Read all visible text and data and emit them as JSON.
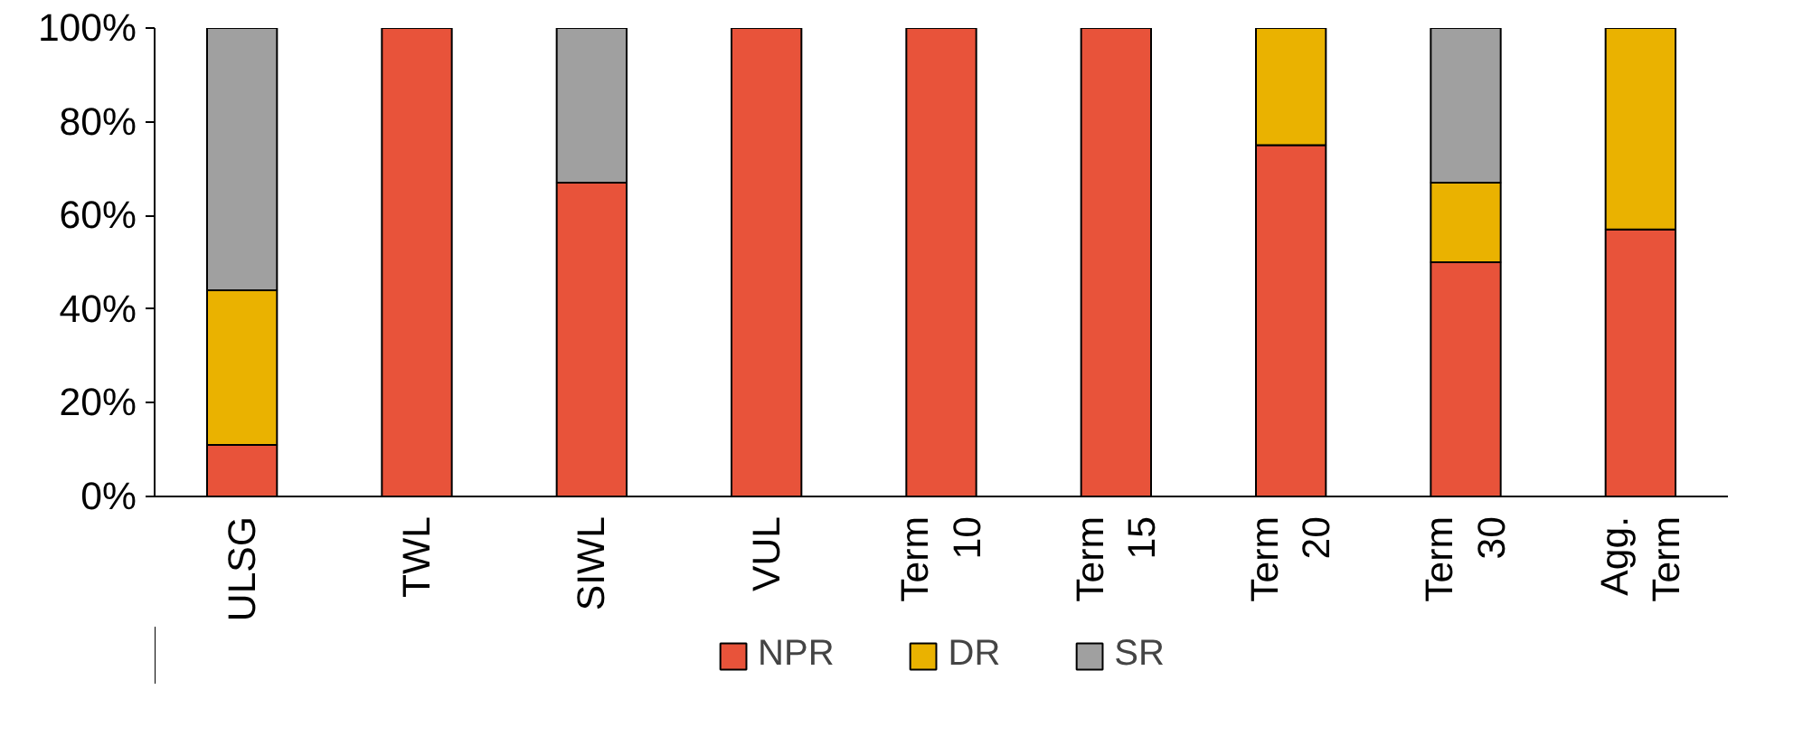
{
  "chart_data": {
    "type": "bar",
    "stacked": true,
    "categories": [
      "ULSG",
      "TWL",
      "SIWL",
      "VUL",
      "Term\n10",
      "Term\n15",
      "Term\n20",
      "Term\n30",
      "Agg.\nTerm"
    ],
    "series": [
      {
        "name": "NPR",
        "color": "#e8533a",
        "values": [
          0.11,
          1,
          0.67,
          1,
          1,
          1,
          0.75,
          0.5,
          0.57
        ]
      },
      {
        "name": "DR",
        "color": "#eab200",
        "values": [
          0.33,
          0,
          0,
          0,
          0,
          0,
          0.25,
          0.17,
          0.43
        ]
      },
      {
        "name": "SR",
        "color": "#a0a0a0",
        "values": [
          0.56,
          0,
          0.33,
          0,
          0,
          0,
          0,
          0.33,
          0
        ]
      }
    ],
    "ylim": [
      0,
      1
    ],
    "yticks": [
      {
        "value": 0,
        "label": "0%"
      },
      {
        "value": 0.2,
        "label": "20%"
      },
      {
        "value": 0.4,
        "label": "40%"
      },
      {
        "value": 0.6,
        "label": "60%"
      },
      {
        "value": 0.8,
        "label": "80%"
      },
      {
        "value": 1,
        "label": "100%"
      }
    ],
    "grid": false,
    "legend": "bottom"
  }
}
